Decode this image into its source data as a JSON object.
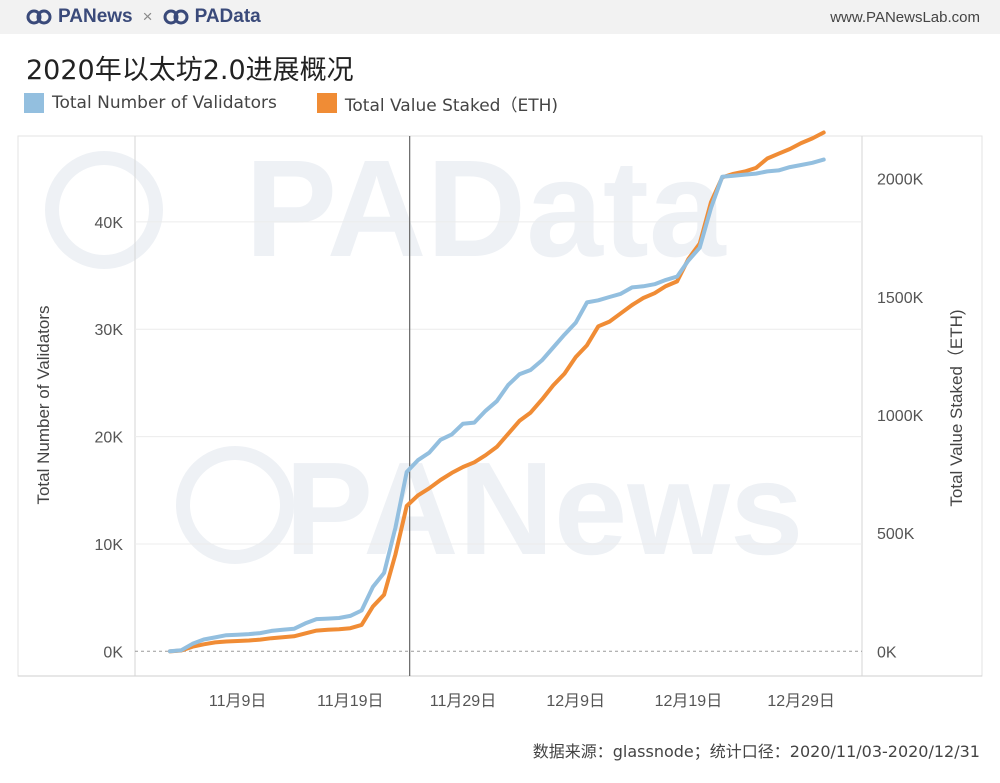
{
  "header": {
    "brand_left": "PANews",
    "brand_sep": "×",
    "brand_right": "PAData",
    "site_url": "www.PANewsLab.com"
  },
  "title": "2020年以太坊2.0进展概况",
  "legend": [
    {
      "label": "Total Number of Validators",
      "color": "#93bfdf"
    },
    {
      "label": "Total Value Staked（ETH)",
      "color": "#f08c35"
    }
  ],
  "footer": "数据来源：glassnode；统计口径：2020/11/03-2020/12/31",
  "watermarks": [
    "PAData",
    "PANews"
  ],
  "chart_data": {
    "type": "line",
    "x": [
      "2020-11-03",
      "2020-11-04",
      "2020-11-05",
      "2020-11-06",
      "2020-11-07",
      "2020-11-08",
      "2020-11-09",
      "2020-11-10",
      "2020-11-11",
      "2020-11-12",
      "2020-11-13",
      "2020-11-14",
      "2020-11-15",
      "2020-11-16",
      "2020-11-17",
      "2020-11-18",
      "2020-11-19",
      "2020-11-20",
      "2020-11-21",
      "2020-11-22",
      "2020-11-23",
      "2020-11-24",
      "2020-11-25",
      "2020-11-26",
      "2020-11-27",
      "2020-11-28",
      "2020-11-29",
      "2020-11-30",
      "2020-12-01",
      "2020-12-02",
      "2020-12-03",
      "2020-12-04",
      "2020-12-05",
      "2020-12-06",
      "2020-12-07",
      "2020-12-08",
      "2020-12-09",
      "2020-12-10",
      "2020-12-11",
      "2020-12-12",
      "2020-12-13",
      "2020-12-14",
      "2020-12-15",
      "2020-12-16",
      "2020-12-17",
      "2020-12-18",
      "2020-12-19",
      "2020-12-20",
      "2020-12-21",
      "2020-12-22",
      "2020-12-23",
      "2020-12-24",
      "2020-12-25",
      "2020-12-26",
      "2020-12-27",
      "2020-12-28",
      "2020-12-29",
      "2020-12-30",
      "2020-12-31"
    ],
    "series": [
      {
        "name": "Total Number of Validators",
        "axis": "left",
        "color": "#93bfdf",
        "values": [
          0,
          100,
          700,
          1100,
          1300,
          1500,
          1550,
          1600,
          1700,
          1900,
          2000,
          2100,
          2600,
          3000,
          3050,
          3100,
          3300,
          3800,
          6000,
          7300,
          11500,
          16700,
          17800,
          18500,
          19700,
          20200,
          21200,
          21300,
          22400,
          23300,
          24800,
          25800,
          26200,
          27100,
          28300,
          29500,
          30600,
          32500,
          32700,
          33000,
          33300,
          33900,
          34000,
          34200,
          34600,
          34900,
          36400,
          37600,
          41300,
          44200,
          44300,
          44400,
          44500,
          44700,
          44800,
          45100,
          45300,
          45500,
          45800
        ]
      },
      {
        "name": "Total Value Staked（ETH)",
        "axis": "right",
        "color": "#f08c35",
        "values": [
          0,
          4000,
          20000,
          30000,
          38000,
          42000,
          44000,
          46000,
          50000,
          56000,
          60000,
          64000,
          76000,
          88000,
          92000,
          94000,
          98000,
          112000,
          190000,
          240000,
          410000,
          615000,
          660000,
          690000,
          725000,
          755000,
          780000,
          800000,
          830000,
          865000,
          920000,
          975000,
          1010000,
          1065000,
          1125000,
          1175000,
          1245000,
          1295000,
          1375000,
          1395000,
          1430000,
          1465000,
          1495000,
          1515000,
          1545000,
          1565000,
          1660000,
          1725000,
          1900000,
          2005000,
          2020000,
          2030000,
          2045000,
          2085000,
          2105000,
          2125000,
          2150000,
          2170000,
          2195000
        ]
      }
    ],
    "x_ticks": [
      "11月9日",
      "11月19日",
      "11月29日",
      "12月9日",
      "12月19日",
      "12月29日"
    ],
    "y_left": {
      "label": "Total Number of Validators",
      "ticks": [
        "0K",
        "10K",
        "20K",
        "30K",
        "40K"
      ],
      "range": [
        -2300,
        48000
      ]
    },
    "y_right": {
      "label": "Total Value Staked（ETH)",
      "ticks": [
        "0K",
        "500K",
        "1000K",
        "1500K",
        "2000K"
      ],
      "range": [
        -104000,
        2180000
      ]
    },
    "reference_line": "2020-11-24",
    "grid": true
  }
}
